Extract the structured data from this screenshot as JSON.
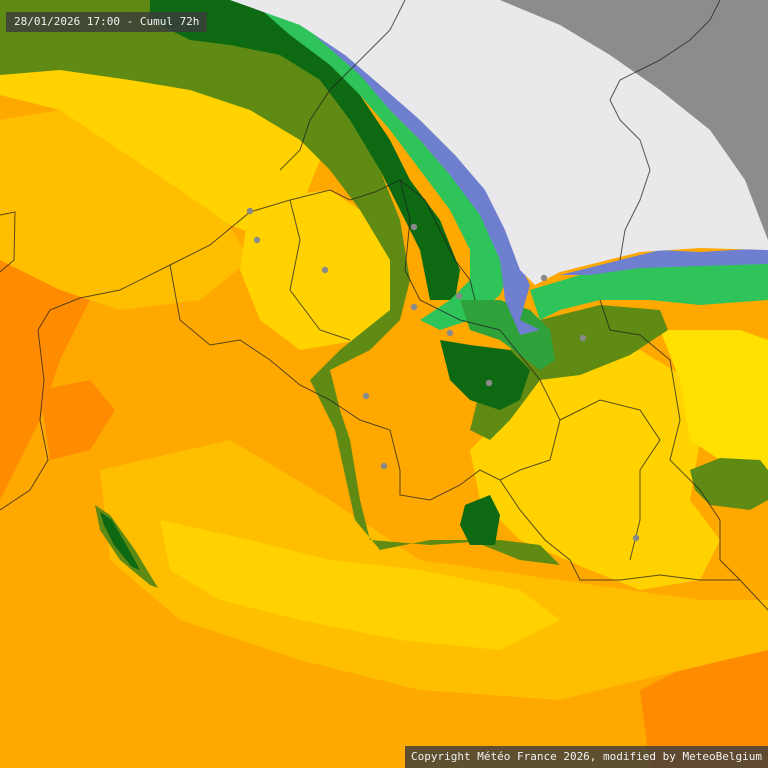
{
  "map": {
    "title": "28/01/2026 17:00 - Cumul 72h",
    "copyright": "Copyright Météo France 2026, modified by MeteoBelgium",
    "layer": "accumulated-precipitation-72h",
    "colors": {
      "ocean_gray": "#8c8c8c",
      "no_data_white": "#e9e9ec",
      "orange_dark": "#ff8c00",
      "orange": "#ffa800",
      "orange_light": "#ffbf00",
      "yellow": "#ffd200",
      "yellow_light": "#ffe000",
      "green_olive": "#5f8a14",
      "green_dark": "#0d6a12",
      "green_mid": "#2fa23c",
      "green_bright": "#2fc45a",
      "blue_purple": "#6f7fcf",
      "border_line": "#222222",
      "city_dot": "#8a8a8a"
    },
    "city_markers": [
      "city-1",
      "city-2",
      "city-3",
      "city-4",
      "city-5",
      "city-6",
      "city-7",
      "city-8",
      "city-9",
      "city-10",
      "city-11",
      "city-12",
      "city-13"
    ]
  }
}
